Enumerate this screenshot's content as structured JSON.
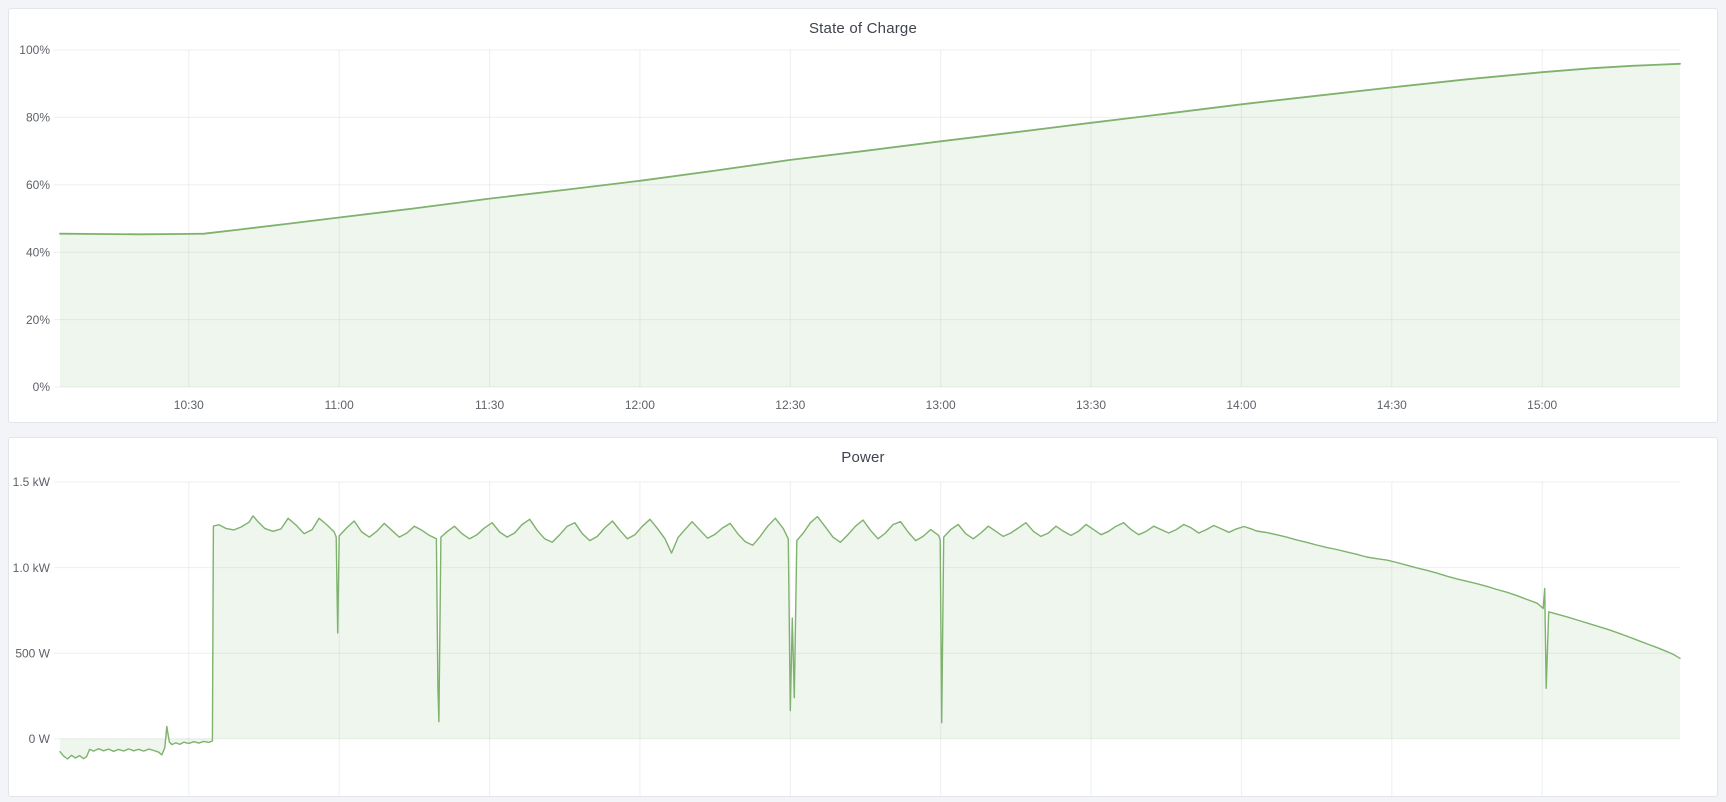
{
  "page": {
    "background": "#f2f4f8",
    "panel_background": "#ffffff",
    "panel_border": "#e2e5ea"
  },
  "colors": {
    "series_green": "#7eb26d",
    "grid": "rgba(20,30,50,0.07)",
    "tick_text": "#5e6269",
    "title_text": "#3f4350"
  },
  "chart_data": [
    {
      "type": "area",
      "title": "State of Charge",
      "x_unit": "minutes after 10:00",
      "xlim": [
        4.3,
        327.5
      ],
      "ylim": [
        0,
        100
      ],
      "grid": true,
      "legend": "none",
      "line_color": "#7eb26d",
      "fill_opacity": 0.12,
      "baseline": 0,
      "x_ticks": [
        {
          "v": 30,
          "label": "10:30"
        },
        {
          "v": 60,
          "label": "11:00"
        },
        {
          "v": 90,
          "label": "11:30"
        },
        {
          "v": 120,
          "label": "12:00"
        },
        {
          "v": 150,
          "label": "12:30"
        },
        {
          "v": 180,
          "label": "13:00"
        },
        {
          "v": 210,
          "label": "13:30"
        },
        {
          "v": 240,
          "label": "14:00"
        },
        {
          "v": 270,
          "label": "14:30"
        },
        {
          "v": 300,
          "label": "15:00"
        }
      ],
      "y_ticks": [
        {
          "v": 0,
          "label": "0%"
        },
        {
          "v": 20,
          "label": "20%"
        },
        {
          "v": 40,
          "label": "40%"
        },
        {
          "v": 60,
          "label": "60%"
        },
        {
          "v": 80,
          "label": "80%"
        },
        {
          "v": 100,
          "label": "100%"
        }
      ],
      "points": [
        [
          4.3,
          45.5
        ],
        [
          12,
          45.4
        ],
        [
          20,
          45.3
        ],
        [
          28,
          45.4
        ],
        [
          33,
          45.5
        ],
        [
          40,
          46.7
        ],
        [
          50,
          48.5
        ],
        [
          60,
          50.3
        ],
        [
          75,
          53.0
        ],
        [
          90,
          55.9
        ],
        [
          105,
          58.5
        ],
        [
          120,
          61.2
        ],
        [
          135,
          64.2
        ],
        [
          150,
          67.4
        ],
        [
          165,
          70.1
        ],
        [
          180,
          72.9
        ],
        [
          195,
          75.6
        ],
        [
          210,
          78.4
        ],
        [
          225,
          81.1
        ],
        [
          240,
          83.9
        ],
        [
          255,
          86.4
        ],
        [
          270,
          88.9
        ],
        [
          285,
          91.3
        ],
        [
          300,
          93.4
        ],
        [
          310,
          94.6
        ],
        [
          318,
          95.3
        ],
        [
          327.5,
          95.9
        ]
      ]
    },
    {
      "type": "area",
      "title": "Power",
      "x_unit": "minutes after 10:00",
      "xlim": [
        4.3,
        327.5
      ],
      "ylim": [
        -334,
        1500
      ],
      "grid": true,
      "legend": "none",
      "line_color": "#7eb26d",
      "fill_opacity": 0.12,
      "baseline": 0,
      "x_ticks": [
        {
          "v": 30,
          "label": "10:30"
        },
        {
          "v": 60,
          "label": "11:00"
        },
        {
          "v": 90,
          "label": "11:30"
        },
        {
          "v": 120,
          "label": "12:00"
        },
        {
          "v": 150,
          "label": "12:30"
        },
        {
          "v": 180,
          "label": "13:00"
        },
        {
          "v": 210,
          "label": "13:30"
        },
        {
          "v": 240,
          "label": "14:00"
        },
        {
          "v": 270,
          "label": "14:30"
        },
        {
          "v": 300,
          "label": "15:00"
        }
      ],
      "y_ticks": [
        {
          "v": 0,
          "label": "0 W"
        },
        {
          "v": 500,
          "label": "500 W"
        },
        {
          "v": 1000,
          "label": "1.0 kW"
        },
        {
          "v": 1500,
          "label": "1.5 kW"
        }
      ],
      "points": [
        [
          4.3,
          -75
        ],
        [
          5,
          -100
        ],
        [
          5.8,
          -118
        ],
        [
          6.6,
          -96
        ],
        [
          7.4,
          -112
        ],
        [
          8.2,
          -98
        ],
        [
          9,
          -116
        ],
        [
          9.6,
          -104
        ],
        [
          10.2,
          -62
        ],
        [
          11,
          -72
        ],
        [
          12,
          -58
        ],
        [
          13,
          -70
        ],
        [
          14,
          -60
        ],
        [
          15,
          -73
        ],
        [
          16,
          -62
        ],
        [
          17,
          -71
        ],
        [
          18,
          -59
        ],
        [
          19,
          -70
        ],
        [
          20,
          -61
        ],
        [
          21,
          -72
        ],
        [
          22,
          -60
        ],
        [
          23,
          -68
        ],
        [
          24,
          -78
        ],
        [
          24.6,
          -94
        ],
        [
          25.2,
          -52
        ],
        [
          25.6,
          72
        ],
        [
          26.1,
          -18
        ],
        [
          26.6,
          -34
        ],
        [
          27.4,
          -24
        ],
        [
          28.2,
          -32
        ],
        [
          29,
          -20
        ],
        [
          30,
          -27
        ],
        [
          31,
          -17
        ],
        [
          32,
          -25
        ],
        [
          33,
          -15
        ],
        [
          34,
          -21
        ],
        [
          34.7,
          -13
        ],
        [
          34.9,
          1243
        ],
        [
          36,
          1250
        ],
        [
          37.5,
          1228
        ],
        [
          39,
          1220
        ],
        [
          40.5,
          1238
        ],
        [
          42,
          1265
        ],
        [
          42.8,
          1302
        ],
        [
          43.8,
          1268
        ],
        [
          45.2,
          1228
        ],
        [
          46.8,
          1212
        ],
        [
          48.4,
          1226
        ],
        [
          49.8,
          1288
        ],
        [
          51.4,
          1248
        ],
        [
          53,
          1198
        ],
        [
          54.6,
          1222
        ],
        [
          56,
          1288
        ],
        [
          57.6,
          1248
        ],
        [
          59,
          1208
        ],
        [
          59.4,
          1178
        ],
        [
          59.7,
          618
        ],
        [
          60,
          1185
        ],
        [
          61.5,
          1232
        ],
        [
          63,
          1272
        ],
        [
          64.5,
          1208
        ],
        [
          66,
          1178
        ],
        [
          67.5,
          1212
        ],
        [
          69,
          1258
        ],
        [
          70.5,
          1218
        ],
        [
          72,
          1178
        ],
        [
          73.5,
          1202
        ],
        [
          75,
          1242
        ],
        [
          76.5,
          1218
        ],
        [
          78,
          1188
        ],
        [
          79.4,
          1168
        ],
        [
          79.7,
          300
        ],
        [
          79.9,
          100
        ],
        [
          80.3,
          1178
        ],
        [
          81.6,
          1212
        ],
        [
          83,
          1242
        ],
        [
          84.5,
          1198
        ],
        [
          86,
          1168
        ],
        [
          87.5,
          1192
        ],
        [
          89,
          1232
        ],
        [
          90.5,
          1262
        ],
        [
          92,
          1208
        ],
        [
          93.5,
          1178
        ],
        [
          95,
          1202
        ],
        [
          96.5,
          1252
        ],
        [
          98,
          1282
        ],
        [
          99.5,
          1218
        ],
        [
          101,
          1168
        ],
        [
          102.5,
          1148
        ],
        [
          104,
          1192
        ],
        [
          105.5,
          1242
        ],
        [
          107,
          1262
        ],
        [
          108.5,
          1198
        ],
        [
          110,
          1158
        ],
        [
          111.5,
          1182
        ],
        [
          113,
          1232
        ],
        [
          114.5,
          1272
        ],
        [
          116,
          1218
        ],
        [
          117.5,
          1168
        ],
        [
          119,
          1192
        ],
        [
          120.5,
          1242
        ],
        [
          122,
          1282
        ],
        [
          123.5,
          1228
        ],
        [
          125,
          1168
        ],
        [
          126.3,
          1085
        ],
        [
          127.6,
          1175
        ],
        [
          129,
          1222
        ],
        [
          130.4,
          1268
        ],
        [
          132,
          1218
        ],
        [
          133.5,
          1172
        ],
        [
          135,
          1195
        ],
        [
          136.5,
          1232
        ],
        [
          138,
          1258
        ],
        [
          139.5,
          1198
        ],
        [
          141,
          1152
        ],
        [
          142.5,
          1130
        ],
        [
          144,
          1182
        ],
        [
          145.5,
          1242
        ],
        [
          147,
          1288
        ],
        [
          148.6,
          1228
        ],
        [
          149.6,
          1168
        ],
        [
          150,
          165
        ],
        [
          150.4,
          705
        ],
        [
          150.8,
          240
        ],
        [
          151.3,
          1158
        ],
        [
          152.6,
          1202
        ],
        [
          154,
          1262
        ],
        [
          155.4,
          1298
        ],
        [
          157,
          1238
        ],
        [
          158.5,
          1178
        ],
        [
          160,
          1148
        ],
        [
          161.5,
          1192
        ],
        [
          163,
          1242
        ],
        [
          164.5,
          1278
        ],
        [
          166,
          1218
        ],
        [
          167.5,
          1168
        ],
        [
          169,
          1202
        ],
        [
          170.5,
          1252
        ],
        [
          172,
          1268
        ],
        [
          173.5,
          1208
        ],
        [
          175,
          1158
        ],
        [
          176.5,
          1182
        ],
        [
          178,
          1222
        ],
        [
          179.6,
          1188
        ],
        [
          179.9,
          1160
        ],
        [
          180.2,
          94
        ],
        [
          180.6,
          1178
        ],
        [
          182,
          1222
        ],
        [
          183.5,
          1252
        ],
        [
          185,
          1198
        ],
        [
          186.5,
          1168
        ],
        [
          188,
          1202
        ],
        [
          189.5,
          1242
        ],
        [
          191,
          1212
        ],
        [
          192.5,
          1182
        ],
        [
          194,
          1202
        ],
        [
          195.5,
          1232
        ],
        [
          197,
          1262
        ],
        [
          198.5,
          1212
        ],
        [
          200,
          1182
        ],
        [
          201.5,
          1202
        ],
        [
          203,
          1242
        ],
        [
          204.5,
          1212
        ],
        [
          206,
          1188
        ],
        [
          207.5,
          1212
        ],
        [
          209,
          1252
        ],
        [
          210.5,
          1222
        ],
        [
          212,
          1192
        ],
        [
          213.5,
          1212
        ],
        [
          215,
          1242
        ],
        [
          216.5,
          1262
        ],
        [
          218,
          1222
        ],
        [
          219.5,
          1192
        ],
        [
          221,
          1212
        ],
        [
          222.5,
          1242
        ],
        [
          224,
          1222
        ],
        [
          225.5,
          1202
        ],
        [
          227,
          1222
        ],
        [
          228.5,
          1252
        ],
        [
          230,
          1232
        ],
        [
          231.5,
          1202
        ],
        [
          233,
          1222
        ],
        [
          234.5,
          1246
        ],
        [
          236,
          1226
        ],
        [
          237.5,
          1206
        ],
        [
          239,
          1226
        ],
        [
          240.5,
          1240
        ],
        [
          242,
          1226
        ],
        [
          243,
          1214
        ],
        [
          245,
          1205
        ],
        [
          247,
          1192
        ],
        [
          249,
          1178
        ],
        [
          251,
          1162
        ],
        [
          253,
          1148
        ],
        [
          255,
          1132
        ],
        [
          257,
          1118
        ],
        [
          259,
          1106
        ],
        [
          261,
          1092
        ],
        [
          263,
          1078
        ],
        [
          265,
          1062
        ],
        [
          267,
          1052
        ],
        [
          269,
          1044
        ],
        [
          271,
          1030
        ],
        [
          273,
          1014
        ],
        [
          275,
          998
        ],
        [
          277,
          984
        ],
        [
          279,
          968
        ],
        [
          281,
          950
        ],
        [
          283,
          934
        ],
        [
          285,
          920
        ],
        [
          287,
          906
        ],
        [
          289,
          890
        ],
        [
          291,
          872
        ],
        [
          293,
          856
        ],
        [
          295,
          836
        ],
        [
          297,
          814
        ],
        [
          299,
          792
        ],
        [
          300.2,
          762
        ],
        [
          300.5,
          878
        ],
        [
          300.8,
          295
        ],
        [
          301.3,
          742
        ],
        [
          303,
          728
        ],
        [
          305,
          712
        ],
        [
          307,
          694
        ],
        [
          309,
          676
        ],
        [
          311,
          658
        ],
        [
          313,
          640
        ],
        [
          315,
          620
        ],
        [
          317,
          598
        ],
        [
          319,
          576
        ],
        [
          321,
          554
        ],
        [
          323,
          532
        ],
        [
          325,
          508
        ],
        [
          326.5,
          488
        ],
        [
          327.5,
          470
        ]
      ]
    }
  ]
}
